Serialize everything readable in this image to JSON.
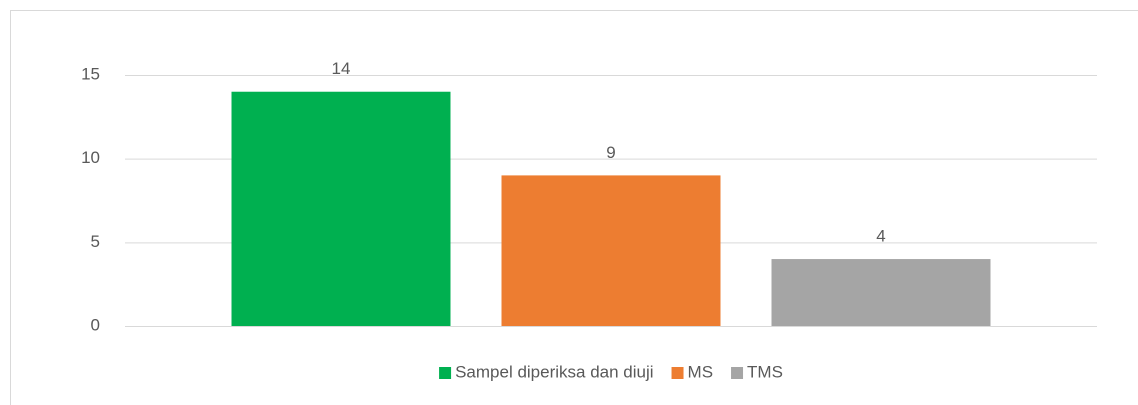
{
  "chart_data": {
    "type": "bar",
    "categories": [
      null
    ],
    "series": [
      {
        "name": "Sampel diperiksa dan diuji",
        "color": "#00b050",
        "values": [
          14
        ]
      },
      {
        "name": "MS",
        "color": "#ed7d31",
        "values": [
          9
        ]
      },
      {
        "name": "TMS",
        "color": "#a5a5a5",
        "values": [
          4
        ]
      }
    ],
    "ylim": [
      0,
      15
    ],
    "yticks": [
      0,
      5,
      10,
      15
    ],
    "grid": true,
    "legend": "bottom"
  }
}
